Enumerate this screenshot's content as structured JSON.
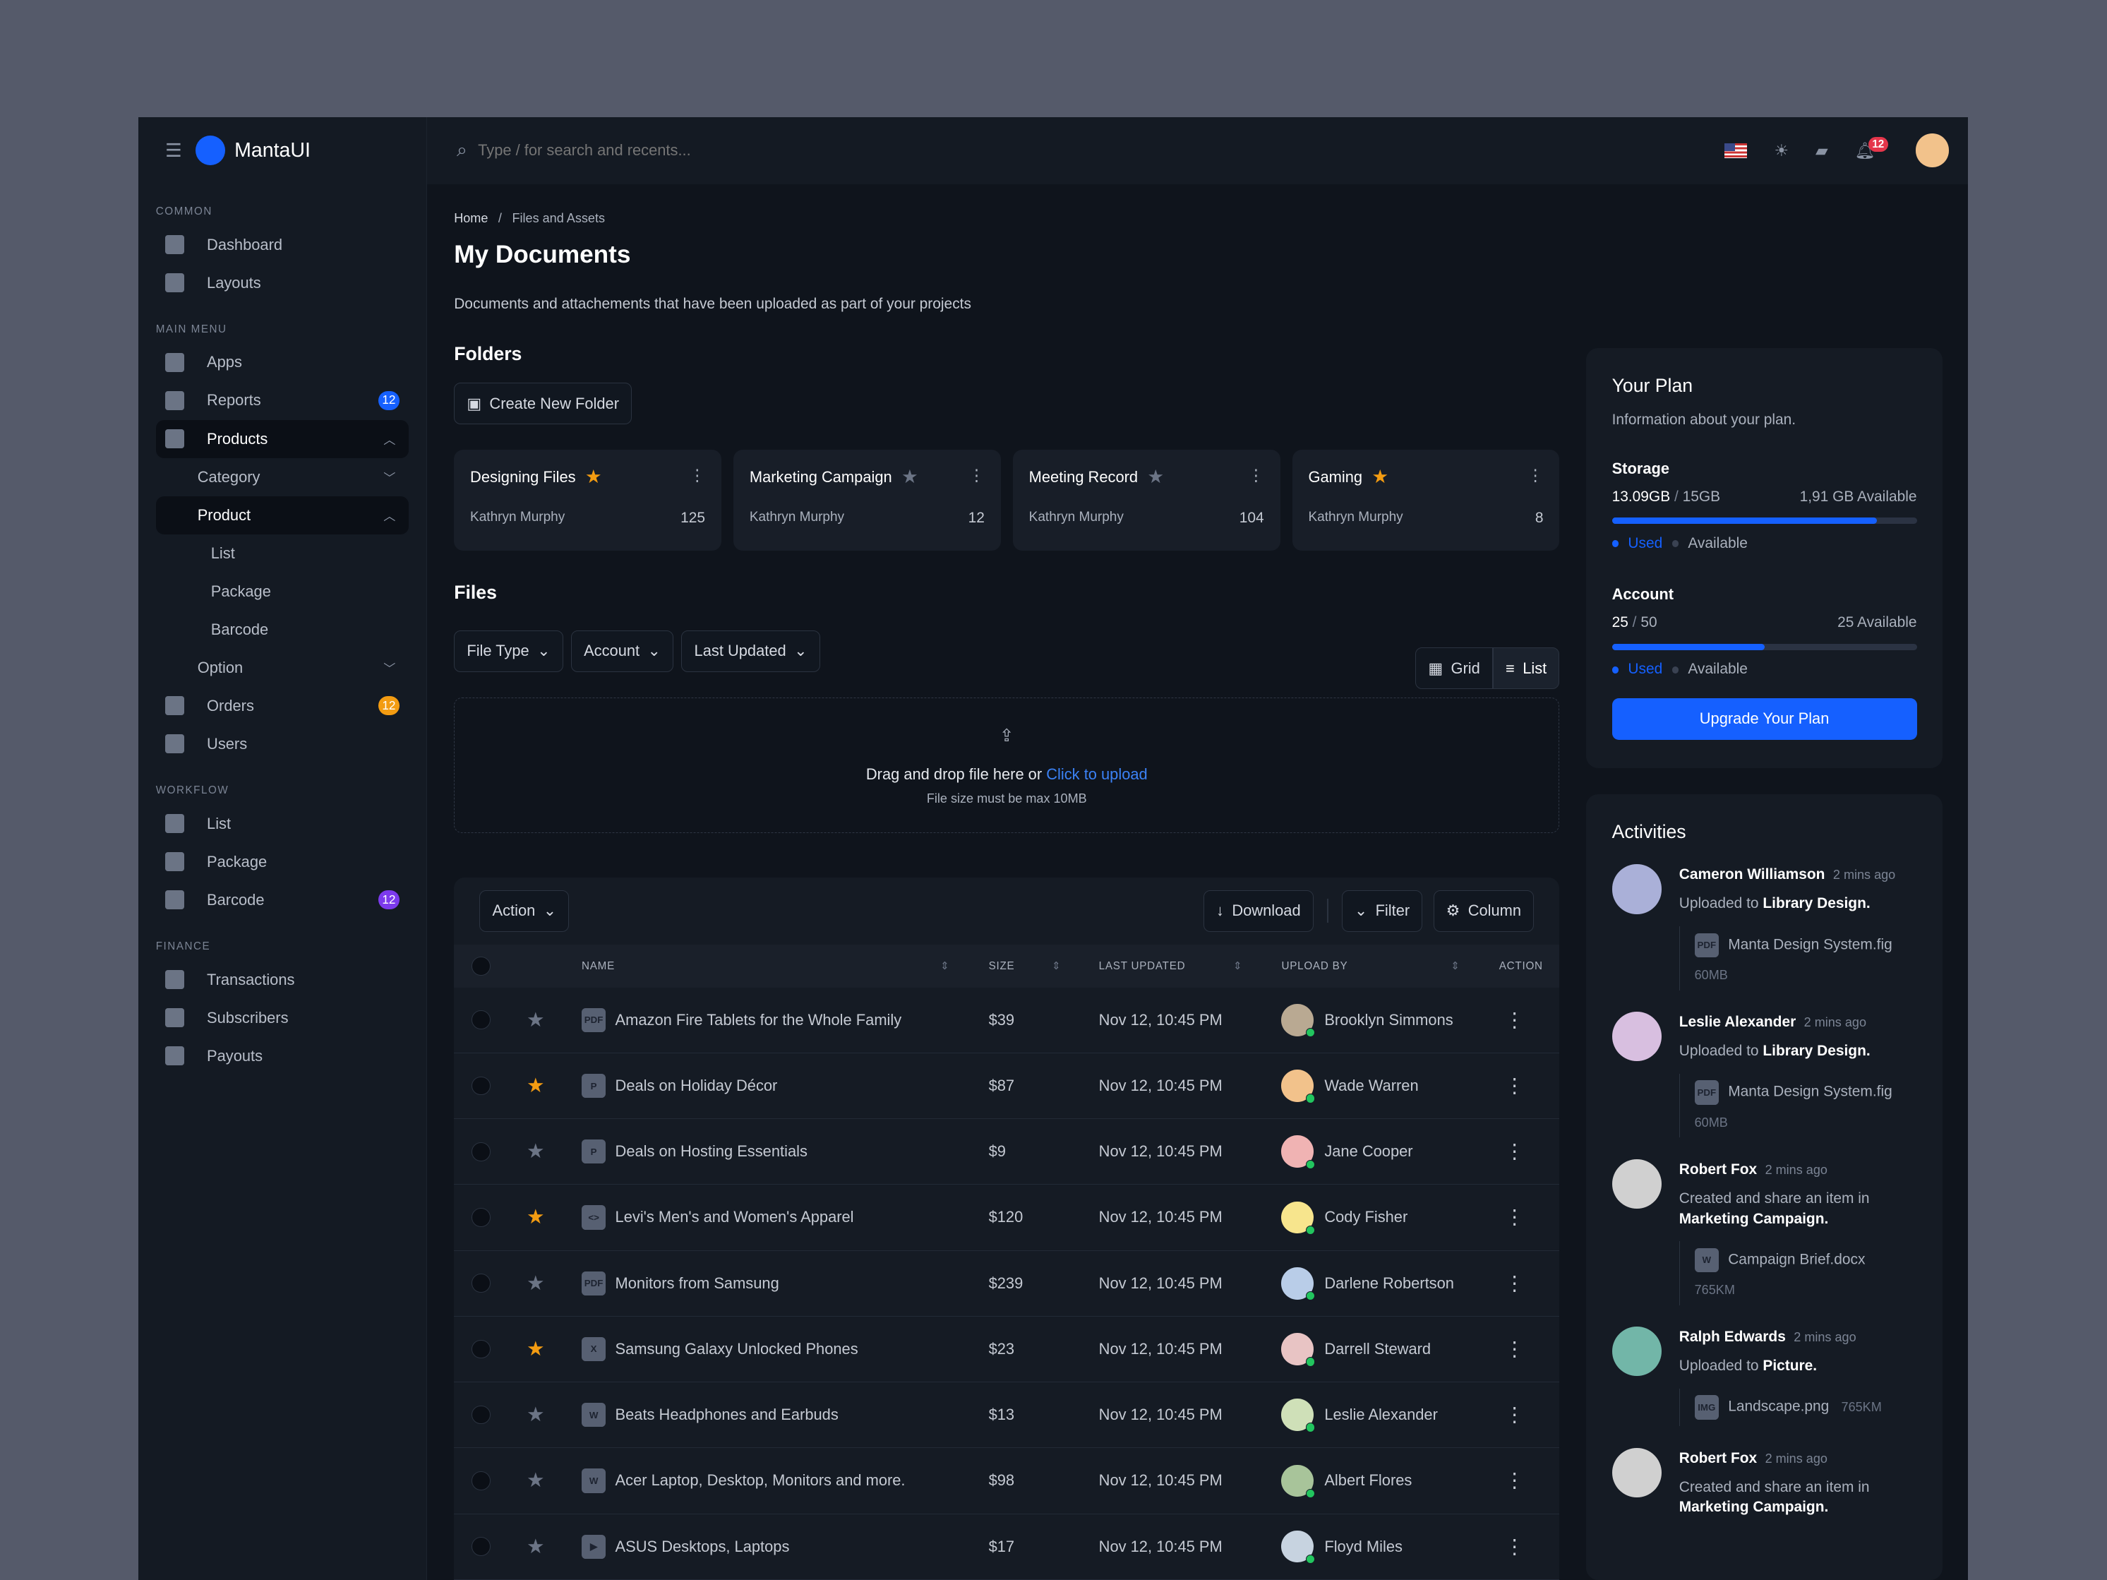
{
  "app": {
    "name": "MantaUI"
  },
  "search": {
    "placeholder": "Type / for search and recents..."
  },
  "header": {
    "notification_count": "12"
  },
  "sidebar": {
    "sections": [
      "COMMON",
      "MAIN MENU",
      "WORKFLOW",
      "FINANCE"
    ],
    "common": [
      {
        "label": "Dashboard"
      },
      {
        "label": "Layouts"
      }
    ],
    "main": [
      {
        "label": "Apps"
      },
      {
        "label": "Reports",
        "badge": "12"
      },
      {
        "label": "Products"
      },
      {
        "label": "Category"
      },
      {
        "label": "Product"
      },
      {
        "label": "List"
      },
      {
        "label": "Package"
      },
      {
        "label": "Barcode"
      },
      {
        "label": "Option"
      },
      {
        "label": "Orders",
        "badge": "12"
      },
      {
        "label": "Users"
      }
    ],
    "workflow": [
      {
        "label": "List"
      },
      {
        "label": "Package"
      },
      {
        "label": "Barcode",
        "badge": "12"
      }
    ],
    "finance": [
      {
        "label": "Transactions"
      },
      {
        "label": "Subscribers"
      },
      {
        "label": "Payouts"
      }
    ]
  },
  "breadcrumb": {
    "home": "Home",
    "sep": "/",
    "current": "Files and Assets"
  },
  "page": {
    "title": "My Documents",
    "description": "Documents and attachements that have been uploaded as part of your projects"
  },
  "folders": {
    "title": "Folders",
    "create_label": "Create New Folder",
    "items": [
      {
        "name": "Designing Files",
        "starred": true,
        "owner": "Kathryn Murphy",
        "count": "125"
      },
      {
        "name": "Marketing Campaign",
        "starred": false,
        "owner": "Kathryn Murphy",
        "count": "12"
      },
      {
        "name": "Meeting Record",
        "starred": false,
        "owner": "Kathryn Murphy",
        "count": "104"
      },
      {
        "name": "Gaming",
        "starred": true,
        "owner": "Kathryn Murphy",
        "count": "8"
      }
    ]
  },
  "files": {
    "title": "Files",
    "filters": [
      "File Type",
      "Account",
      "Last Updated"
    ],
    "view_grid": "Grid",
    "view_list": "List",
    "upload": {
      "text": "Drag and drop file here or ",
      "link": "Click to upload",
      "hint": "File size must be max 10MB"
    }
  },
  "table": {
    "action_label": "Action",
    "download_label": "Download",
    "filter_label": "Filter",
    "column_label": "Column",
    "headers": {
      "name": "NAME",
      "size": "SIZE",
      "updated": "LAST UPDATED",
      "upload_by": "UPLOAD BY",
      "action": "ACTION"
    },
    "rows": [
      {
        "name": "Amazon Fire Tablets for the Whole Family",
        "type": "PDF",
        "starred": false,
        "size": "$39",
        "updated": "Nov 12, 10:45 PM",
        "user": "Brooklyn Simmons",
        "color": "#b9a992"
      },
      {
        "name": "Deals on Holiday Décor",
        "type": "P",
        "starred": true,
        "size": "$87",
        "updated": "Nov 12, 10:45 PM",
        "user": "Wade Warren",
        "color": "#f2c28b"
      },
      {
        "name": "Deals on Hosting Essentials",
        "type": "P",
        "starred": false,
        "size": "$9",
        "updated": "Nov 12, 10:45 PM",
        "user": "Jane Cooper",
        "color": "#f0b3b3"
      },
      {
        "name": "Levi's Men's and Women's Apparel",
        "type": "<>",
        "starred": true,
        "size": "$120",
        "updated": "Nov 12, 10:45 PM",
        "user": "Cody Fisher",
        "color": "#f7e58d"
      },
      {
        "name": "Monitors from Samsung",
        "type": "PDF",
        "starred": false,
        "size": "$239",
        "updated": "Nov 12, 10:45 PM",
        "user": "Darlene Robertson",
        "color": "#b9cde8"
      },
      {
        "name": "Samsung Galaxy Unlocked Phones",
        "type": "X",
        "starred": true,
        "size": "$23",
        "updated": "Nov 12, 10:45 PM",
        "user": "Darrell Steward",
        "color": "#e8c4c4"
      },
      {
        "name": "Beats Headphones and Earbuds",
        "type": "W",
        "starred": false,
        "size": "$13",
        "updated": "Nov 12, 10:45 PM",
        "user": "Leslie Alexander",
        "color": "#cfe0b8"
      },
      {
        "name": "Acer Laptop, Desktop, Monitors and more.",
        "type": "W",
        "starred": false,
        "size": "$98",
        "updated": "Nov 12, 10:45 PM",
        "user": "Albert Flores",
        "color": "#a8c49a"
      },
      {
        "name": "ASUS Desktops, Laptops",
        "type": "▶",
        "starred": false,
        "size": "$17",
        "updated": "Nov 12, 10:45 PM",
        "user": "Floyd Miles",
        "color": "#c7d3e0"
      }
    ]
  },
  "plan": {
    "title": "Your Plan",
    "subtitle": "Information about your plan.",
    "storage": {
      "label": "Storage",
      "used": "13.09GB",
      "total": "15GB",
      "available": "1,91 GB Available",
      "percent": 87
    },
    "account": {
      "label": "Account",
      "used": "25",
      "total": "50",
      "available": "25 Available",
      "percent": 50
    },
    "legend_used": "Used",
    "legend_available": "Available",
    "upgrade_label": "Upgrade Your Plan",
    "colors": {
      "accent": "#1560ff"
    }
  },
  "activities": {
    "title": "Activities",
    "items": [
      {
        "user": "Cameron Williamson",
        "time": "2 mins ago",
        "text": "Uploaded to ",
        "target": "Library Design.",
        "file": "Manta Design System.fig",
        "ftype": "PDF",
        "size": "60MB",
        "color": "#aab0d8"
      },
      {
        "user": "Leslie Alexander",
        "time": "2 mins ago",
        "text": "Uploaded to ",
        "target": "Library Design.",
        "file": "Manta Design System.fig",
        "ftype": "PDF",
        "size": "60MB",
        "color": "#d8bfe0"
      },
      {
        "user": "Robert Fox",
        "time": "2 mins ago",
        "text": "Created and share an item in ",
        "target": "Marketing Campaign.",
        "file": "Campaign Brief.docx",
        "ftype": "W",
        "size": "765KM",
        "color": "#d0d0d0"
      },
      {
        "user": "Ralph Edwards",
        "time": "2 mins ago",
        "text": "Uploaded to ",
        "target": "Picture.",
        "file": "Landscape.png",
        "ftype": "IMG",
        "size": "765KM",
        "color": "#72b6a8"
      },
      {
        "user": "Robert Fox",
        "time": "2 mins ago",
        "text": "Created and share an item in ",
        "target": "Marketing Campaign.",
        "file": "",
        "ftype": "",
        "size": "",
        "color": "#d0d0d0"
      }
    ]
  }
}
